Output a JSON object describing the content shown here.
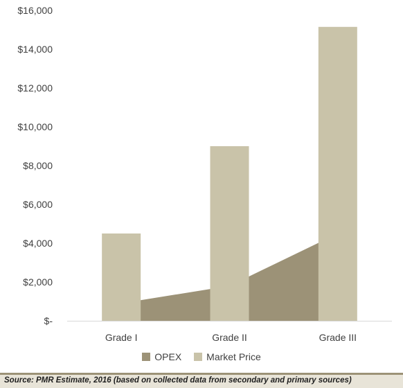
{
  "colors": {
    "market_price": "#c9c3a9",
    "opex": "#9c9277",
    "axis_text": "#404040",
    "source_band": "#e8e4d8",
    "source_border": "#9c9277"
  },
  "chart_data": {
    "type": "bar",
    "categories": [
      "Grade I",
      "Grade II",
      "Grade III"
    ],
    "series": [
      {
        "name": "OPEX",
        "render": "area",
        "values": [
          900,
          1800,
          4500
        ]
      },
      {
        "name": "Market Price",
        "render": "bar",
        "values": [
          4500,
          9000,
          15150
        ]
      }
    ],
    "ylim": [
      0,
      16000
    ],
    "yticks": [
      0,
      2000,
      4000,
      6000,
      8000,
      10000,
      12000,
      14000,
      16000
    ],
    "ytick_labels": [
      "$-",
      "$2,000",
      "$4,000",
      "$6,000",
      "$8,000",
      "$10,000",
      "$12,000",
      "$14,000",
      "$16,000"
    ],
    "grid": false,
    "legend_position": "bottom"
  },
  "legend": {
    "opex": "OPEX",
    "market_price": "Market Price"
  },
  "source": "Source: PMR Estimate, 2016 (based on collected data from secondary and primary sources)"
}
